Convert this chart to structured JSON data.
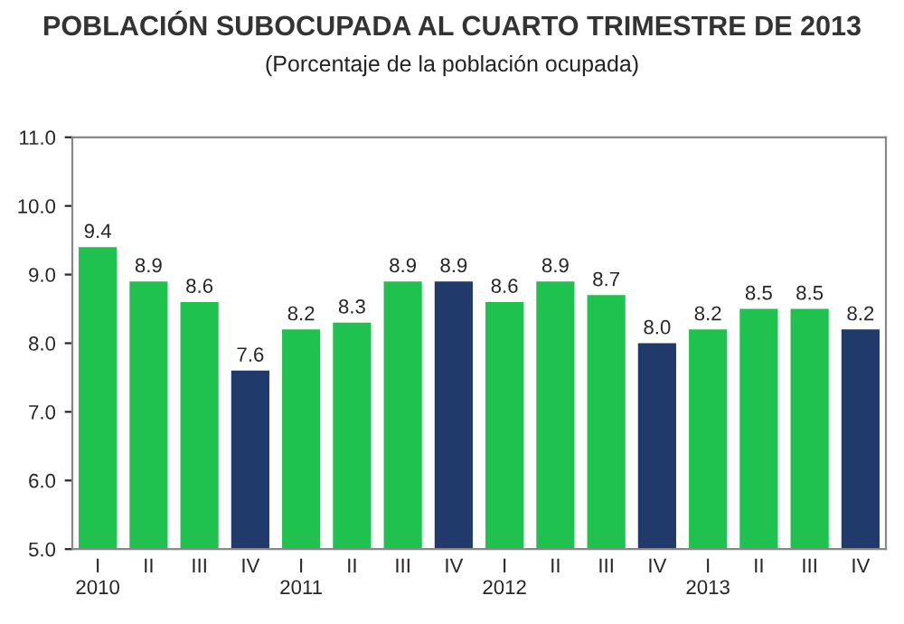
{
  "chart_data": {
    "type": "bar",
    "title": "POBLACIÓN SUBOCUPADA AL CUARTO TRIMESTRE DE 2013",
    "subtitle": "(Porcentaje de la población ocupada)",
    "categories": [
      "I\n2010",
      "II",
      "III",
      "IV",
      "I\n2011",
      "II",
      "III",
      "IV",
      "I\n2012",
      "II",
      "III",
      "IV",
      "I\n2013",
      "II",
      "III",
      "IV"
    ],
    "values": [
      9.4,
      8.9,
      8.6,
      7.6,
      8.2,
      8.3,
      8.9,
      8.9,
      8.6,
      8.9,
      8.7,
      8.0,
      8.2,
      8.5,
      8.5,
      8.2
    ],
    "colors": [
      "#1fc24e",
      "#1fc24e",
      "#1fc24e",
      "#1f3a6b",
      "#1fc24e",
      "#1fc24e",
      "#1fc24e",
      "#1f3a6b",
      "#1fc24e",
      "#1fc24e",
      "#1fc24e",
      "#1f3a6b",
      "#1fc24e",
      "#1fc24e",
      "#1fc24e",
      "#1f3a6b"
    ],
    "ylim": [
      5.0,
      11.0
    ],
    "yticks": [
      {
        "value": 5,
        "label": "5.0"
      },
      {
        "value": 6,
        "label": "6.0"
      },
      {
        "value": 7,
        "label": "7.0"
      },
      {
        "value": 8,
        "label": "8.0"
      },
      {
        "value": 9,
        "label": "9.0"
      },
      {
        "value": 10,
        "label": "10.0"
      },
      {
        "value": 11,
        "label": "11.0"
      }
    ],
    "value_labels": [
      "9.4",
      "8.9",
      "8.6",
      "7.6",
      "8.2",
      "8.3",
      "8.9",
      "8.9",
      "8.6",
      "8.9",
      "8.7",
      "8.0",
      "8.2",
      "8.5",
      "8.5",
      "8.2"
    ],
    "grid": false,
    "legend": false
  }
}
